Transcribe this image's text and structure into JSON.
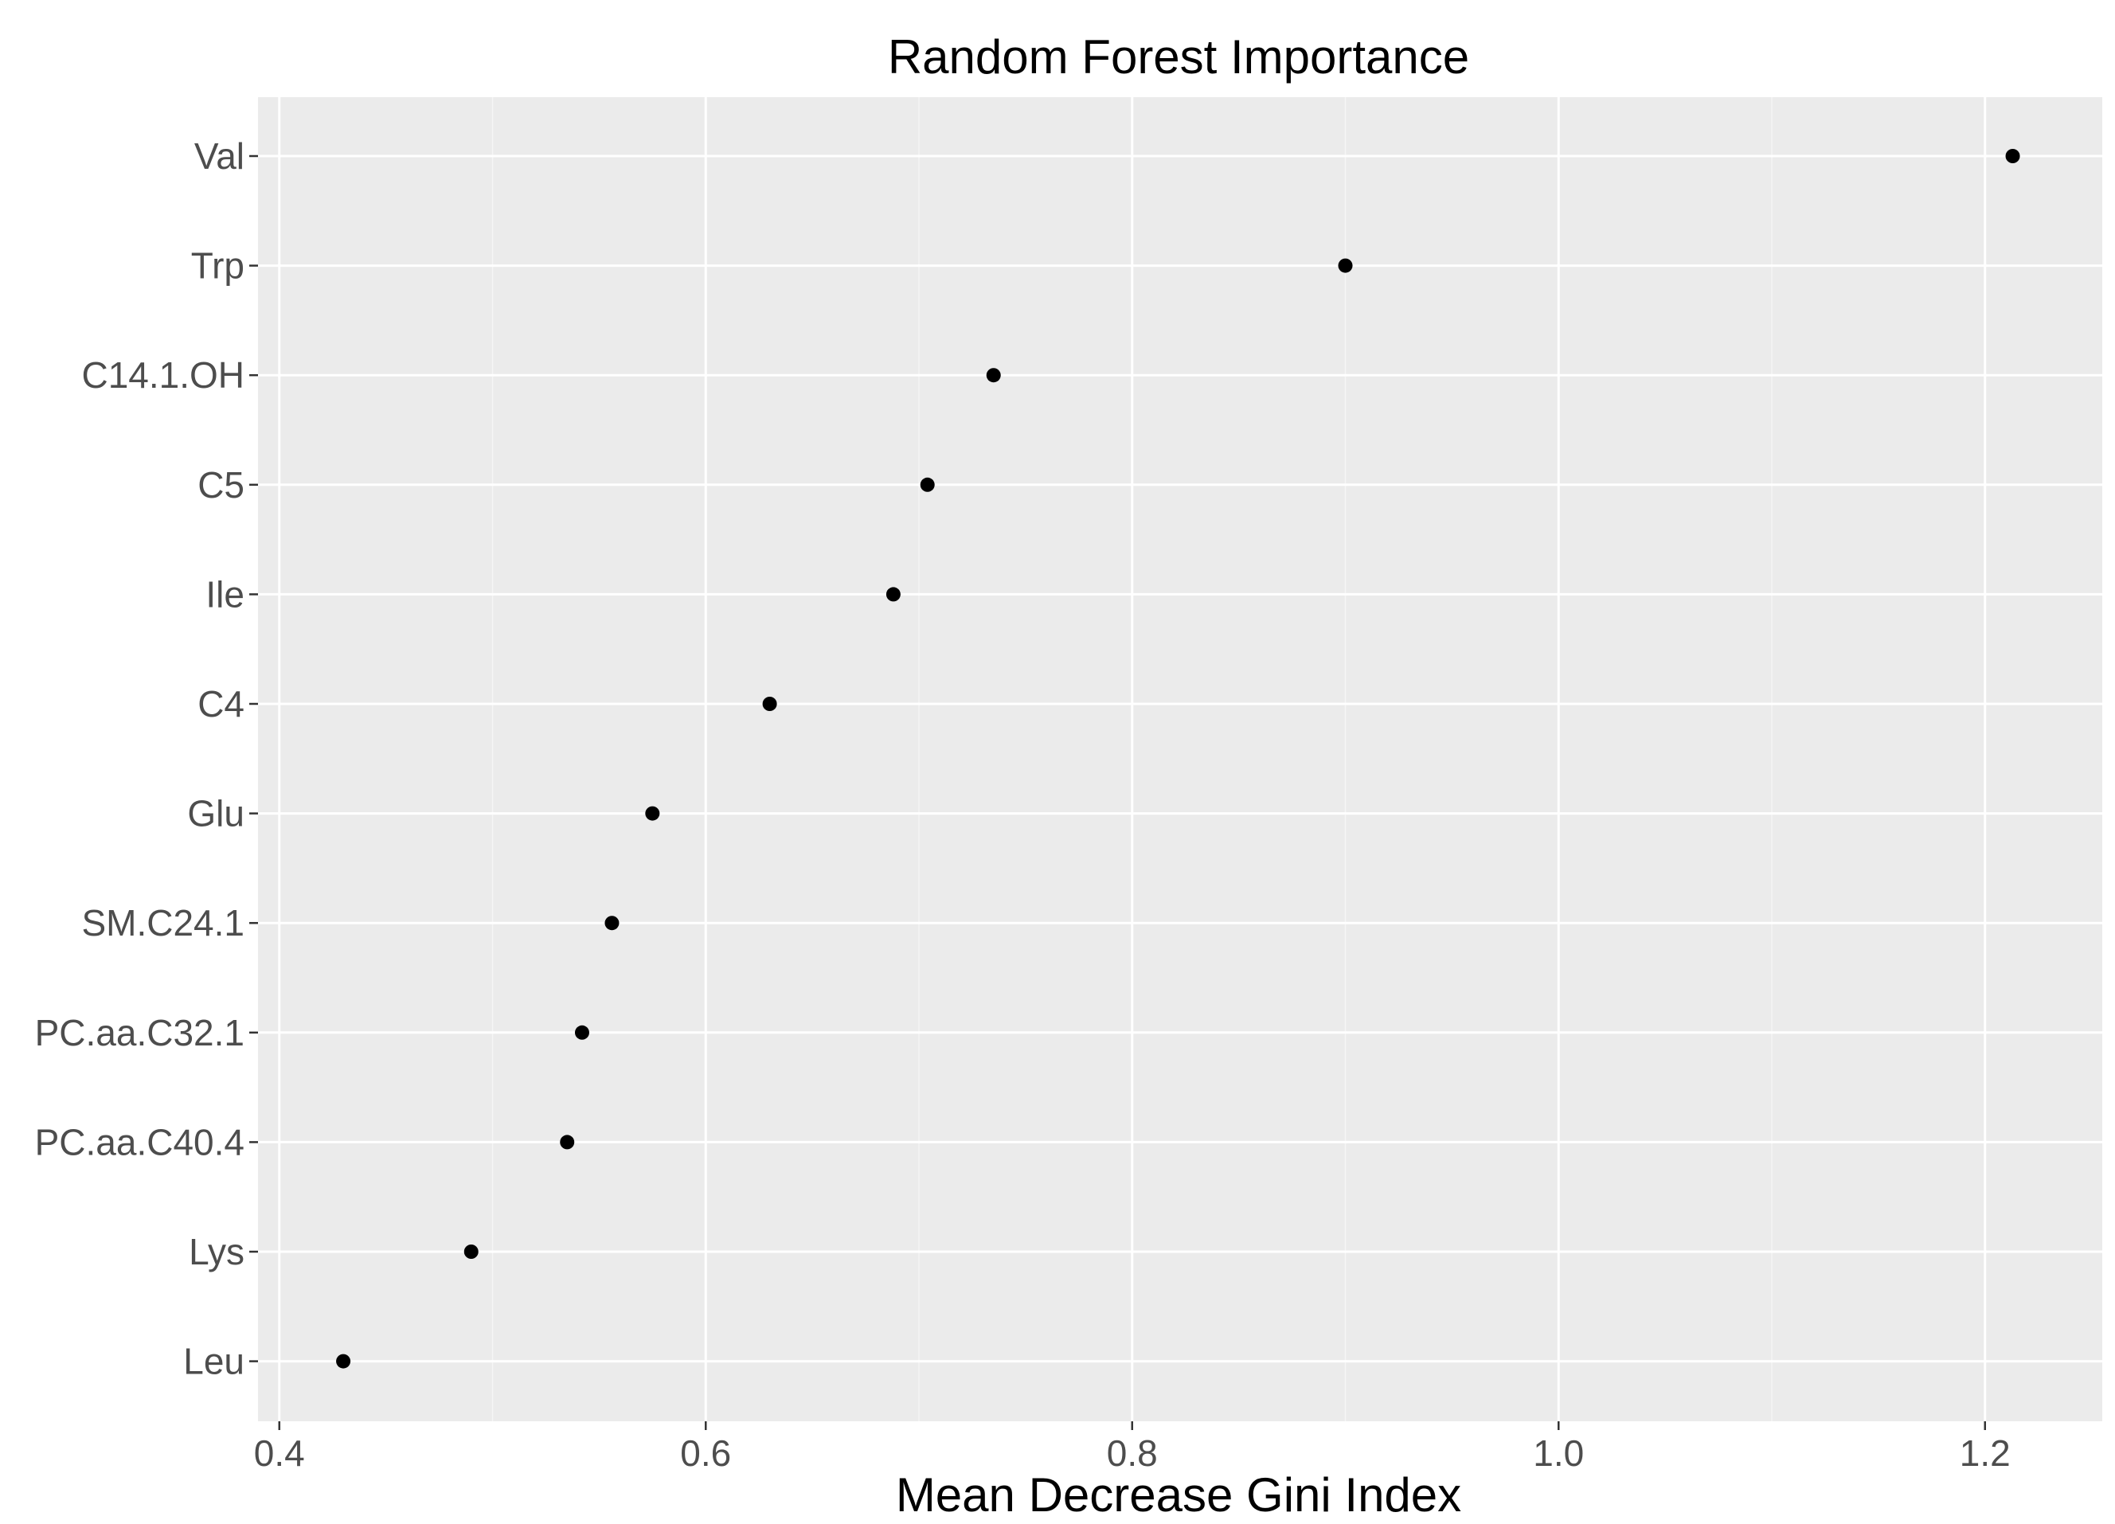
{
  "chart_data": {
    "type": "scatter",
    "title": "Random Forest Importance",
    "xlabel": "Mean Decrease Gini Index",
    "ylabel": "",
    "xlim": [
      0.39,
      1.255
    ],
    "xticks": [
      0.4,
      0.6,
      0.8,
      1.0,
      1.2
    ],
    "xtick_labels": [
      "0.4",
      "0.6",
      "0.8",
      "1.0",
      "1.2"
    ],
    "grid": true,
    "legend": "none",
    "categories": [
      "Val",
      "Trp",
      "C14.1.OH",
      "C5",
      "Ile",
      "C4",
      "Glu",
      "SM.C24.1",
      "PC.aa.C32.1",
      "PC.aa.C40.4",
      "Lys",
      "Leu"
    ],
    "values": [
      1.213,
      0.9,
      0.735,
      0.704,
      0.688,
      0.63,
      0.575,
      0.556,
      0.542,
      0.535,
      0.49,
      0.43
    ],
    "colors": {
      "panel_background": "#ebebeb",
      "grid_major": "#ffffff",
      "grid_minor": "#f5f5f5",
      "point": "#000000",
      "tick_text": "#4d4d4d",
      "tick_mark": "#333333"
    }
  }
}
